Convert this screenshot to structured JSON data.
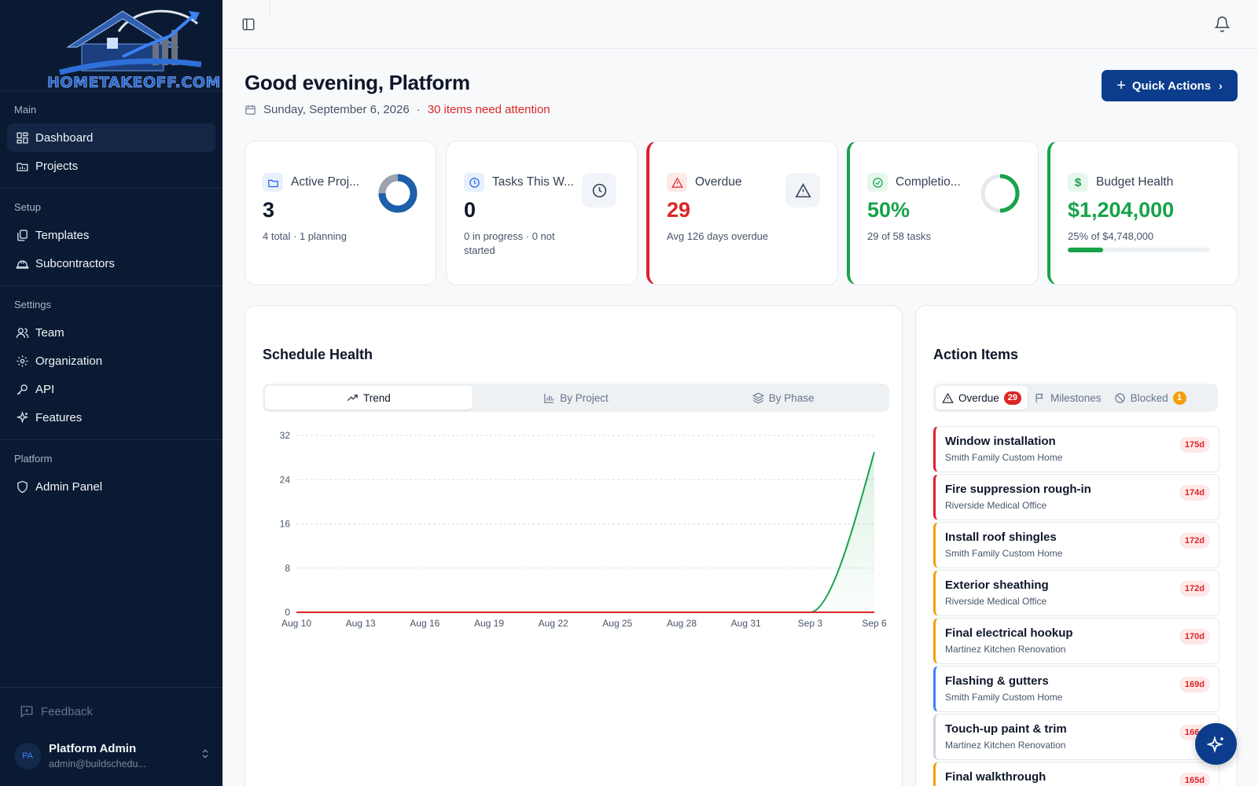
{
  "brand": {
    "logo_text": "HOMETAKEOFF.COM"
  },
  "sidebar": {
    "sections": [
      {
        "heading": "Main",
        "items": [
          {
            "label": "Dashboard",
            "icon": "dashboard-icon"
          },
          {
            "label": "Projects",
            "icon": "projects-icon"
          }
        ]
      },
      {
        "heading": "Setup",
        "items": [
          {
            "label": "Templates",
            "icon": "templates-icon"
          },
          {
            "label": "Subcontractors",
            "icon": "hardhat-icon"
          }
        ]
      },
      {
        "heading": "Settings",
        "items": [
          {
            "label": "Team",
            "icon": "team-icon"
          },
          {
            "label": "Organization",
            "icon": "gear-icon"
          },
          {
            "label": "API",
            "icon": "key-icon"
          },
          {
            "label": "Features",
            "icon": "sparkles-icon"
          }
        ]
      },
      {
        "heading": "Platform",
        "items": [
          {
            "label": "Admin Panel",
            "icon": "shield-icon"
          }
        ]
      }
    ],
    "feedback_label": "Feedback",
    "user": {
      "initials": "PA",
      "name": "Platform Admin",
      "email": "admin@buildschedu..."
    }
  },
  "header": {
    "greeting": "Good evening, Platform",
    "date": "Sunday, September 6, 2026",
    "separator": "·",
    "attention": "30 items need attention",
    "quick_actions_label": "Quick Actions"
  },
  "stats": {
    "active": {
      "title": "Active Proj...",
      "value": "3",
      "sub": "4 total · 1 planning",
      "ring_fraction": 0.75
    },
    "tasks": {
      "title": "Tasks This W...",
      "value": "0",
      "sub": "0 in progress · 0 not started"
    },
    "overdue": {
      "title": "Overdue",
      "value": "29",
      "sub": "Avg 126 days overdue"
    },
    "completion": {
      "title": "Completio...",
      "value": "50%",
      "sub": "29 of 58 tasks",
      "ring_fraction": 0.5
    },
    "budget": {
      "title": "Budget Health",
      "value": "$1,204,000",
      "sub": "25% of $4,748,000",
      "fraction": 0.25
    }
  },
  "colors": {
    "accent": "#0b3d8c",
    "danger": "#dc2626",
    "success": "#16a34a",
    "sidebar": "#0b1a33"
  },
  "schedule": {
    "title": "Schedule Health",
    "tabs": [
      {
        "label": "Trend",
        "icon": "trend-icon"
      },
      {
        "label": "By Project",
        "icon": "bar-chart-icon"
      },
      {
        "label": "By Phase",
        "icon": "layers-icon"
      }
    ]
  },
  "chart_data": {
    "type": "line",
    "x": [
      "Aug 10",
      "Aug 13",
      "Aug 16",
      "Aug 19",
      "Aug 22",
      "Aug 25",
      "Aug 28",
      "Aug 31",
      "Sep 3",
      "Sep 6"
    ],
    "series": [
      {
        "color": "#16a34a",
        "values": [
          0,
          0,
          0,
          0,
          0,
          0,
          0,
          0,
          0,
          29
        ]
      },
      {
        "color": "#dc2626",
        "values": [
          0,
          0,
          0,
          0,
          0,
          0,
          0,
          0,
          0,
          0
        ]
      }
    ],
    "yticks": [
      0,
      8,
      16,
      24,
      32
    ],
    "ylim": [
      0,
      32
    ],
    "grid": true
  },
  "actions": {
    "title": "Action Items",
    "tabs": [
      {
        "label": "Overdue",
        "badge": "29"
      },
      {
        "label": "Milestones",
        "badge": ""
      },
      {
        "label": "Blocked",
        "badge": "1"
      }
    ],
    "items": [
      {
        "name": "Window installation",
        "project": "Smith Family Custom Home",
        "days": "175d",
        "color": "#e11d2e"
      },
      {
        "name": "Fire suppression rough-in",
        "project": "Riverside Medical Office",
        "days": "174d",
        "color": "#e11d2e"
      },
      {
        "name": "Install roof shingles",
        "project": "Smith Family Custom Home",
        "days": "172d",
        "color": "#f59e0b"
      },
      {
        "name": "Exterior sheathing",
        "project": "Riverside Medical Office",
        "days": "172d",
        "color": "#f59e0b"
      },
      {
        "name": "Final electrical hookup",
        "project": "Martinez Kitchen Renovation",
        "days": "170d",
        "color": "#f59e0b"
      },
      {
        "name": "Flashing & gutters",
        "project": "Smith Family Custom Home",
        "days": "169d",
        "color": "#3b82f6"
      },
      {
        "name": "Touch-up paint & trim",
        "project": "Martinez Kitchen Renovation",
        "days": "166d",
        "color": "#cbd5e1"
      },
      {
        "name": "Final walkthrough",
        "project": "",
        "days": "165d",
        "color": "#f59e0b"
      }
    ]
  }
}
